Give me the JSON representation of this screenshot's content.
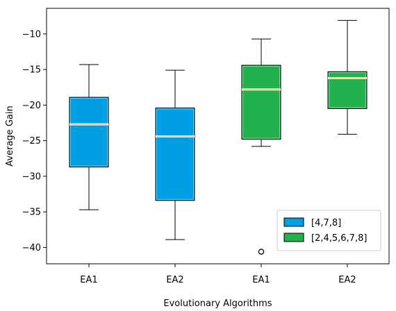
{
  "chart_data": {
    "type": "box",
    "title": "",
    "xlabel": "Evolutionary Algorithms",
    "ylabel": "Average Gain",
    "ylim": [
      -42.3,
      -6.4
    ],
    "yticks": [
      -40,
      -35,
      -30,
      -25,
      -20,
      -15,
      -10
    ],
    "grid": false,
    "legend_position": "lower-right",
    "categories": [
      "EA1",
      "EA2",
      "EA1",
      "EA2"
    ],
    "series": [
      {
        "name": "[4,7,8]",
        "color": "#009fe3",
        "boxes": [
          {
            "category": "EA1",
            "whisker_low": -34.7,
            "q1": -28.7,
            "median": -22.7,
            "q3": -18.9,
            "whisker_high": -14.3,
            "outliers": []
          },
          {
            "category": "EA2",
            "whisker_low": -38.9,
            "q1": -33.4,
            "median": -24.4,
            "q3": -20.4,
            "whisker_high": -15.1,
            "outliers": []
          }
        ]
      },
      {
        "name": "[2,4,5,6,7,8]",
        "color": "#23b04e",
        "boxes": [
          {
            "category": "EA1",
            "whisker_low": -25.8,
            "q1": -24.8,
            "median": -17.8,
            "q3": -14.4,
            "whisker_high": -10.7,
            "outliers": [
              -40.6
            ]
          },
          {
            "category": "EA2",
            "whisker_low": -24.1,
            "q1": -20.5,
            "median": -16.2,
            "q3": -15.3,
            "whisker_high": -8.1,
            "outliers": []
          }
        ]
      }
    ],
    "median_color": "#f5c48a"
  }
}
